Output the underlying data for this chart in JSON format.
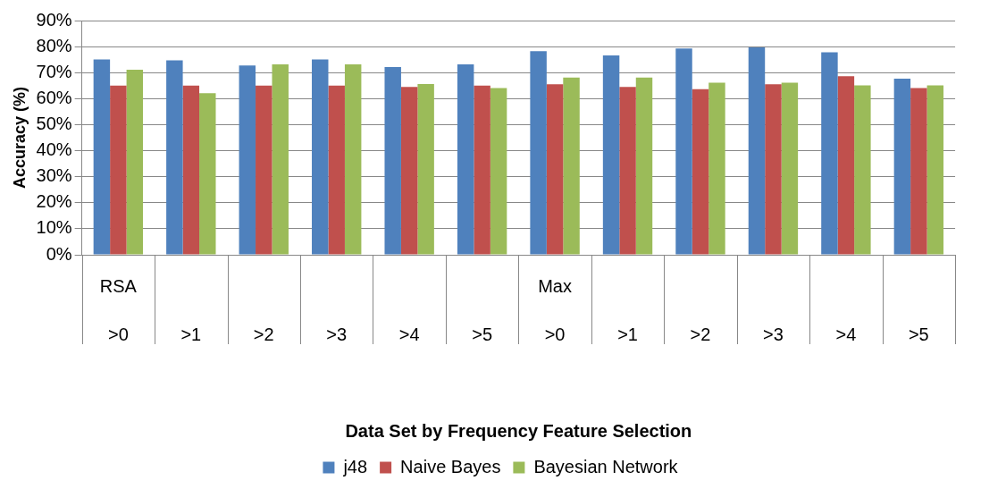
{
  "chart_data": {
    "type": "bar",
    "xlabel": "Data Set by Frequency Feature Selection",
    "ylabel": "Accuracy (%)",
    "categories": [
      ">0",
      ">1",
      ">2",
      ">3",
      ">4",
      ">5",
      ">0",
      ">1",
      ">2",
      ">3",
      ">4",
      ">5"
    ],
    "annotations": [
      "RSA",
      "Max"
    ],
    "series": [
      {
        "name": "j48",
        "color": "#4f81bd",
        "values": [
          75.1,
          74.7,
          72.7,
          75.1,
          72.1,
          73.2,
          78.2,
          76.6,
          79.3,
          79.7,
          77.8,
          67.7
        ]
      },
      {
        "name": "Naive Bayes",
        "color": "#c0504d",
        "values": [
          65.0,
          65.0,
          65.0,
          65.0,
          64.5,
          65.0,
          65.5,
          64.5,
          63.6,
          65.5,
          68.6,
          64.1
        ]
      },
      {
        "name": "Bayesian Network",
        "color": "#9bbb59",
        "values": [
          71.1,
          62.1,
          73.2,
          73.2,
          65.6,
          64.1,
          68.1,
          68.1,
          66.1,
          66.1,
          65.1,
          65.1
        ]
      }
    ],
    "ylim": [
      0,
      90
    ],
    "yticks": [
      {
        "value": 0,
        "label": "0%"
      },
      {
        "value": 10,
        "label": "10%"
      },
      {
        "value": 20,
        "label": "20%"
      },
      {
        "value": 30,
        "label": "30%"
      },
      {
        "value": 40,
        "label": "40%"
      },
      {
        "value": 50,
        "label": "50%"
      },
      {
        "value": 60,
        "label": "60%"
      },
      {
        "value": 70,
        "label": "70%"
      },
      {
        "value": 80,
        "label": "80%"
      },
      {
        "value": 90,
        "label": "90%"
      }
    ],
    "grid": "y",
    "legend": "bottom"
  }
}
